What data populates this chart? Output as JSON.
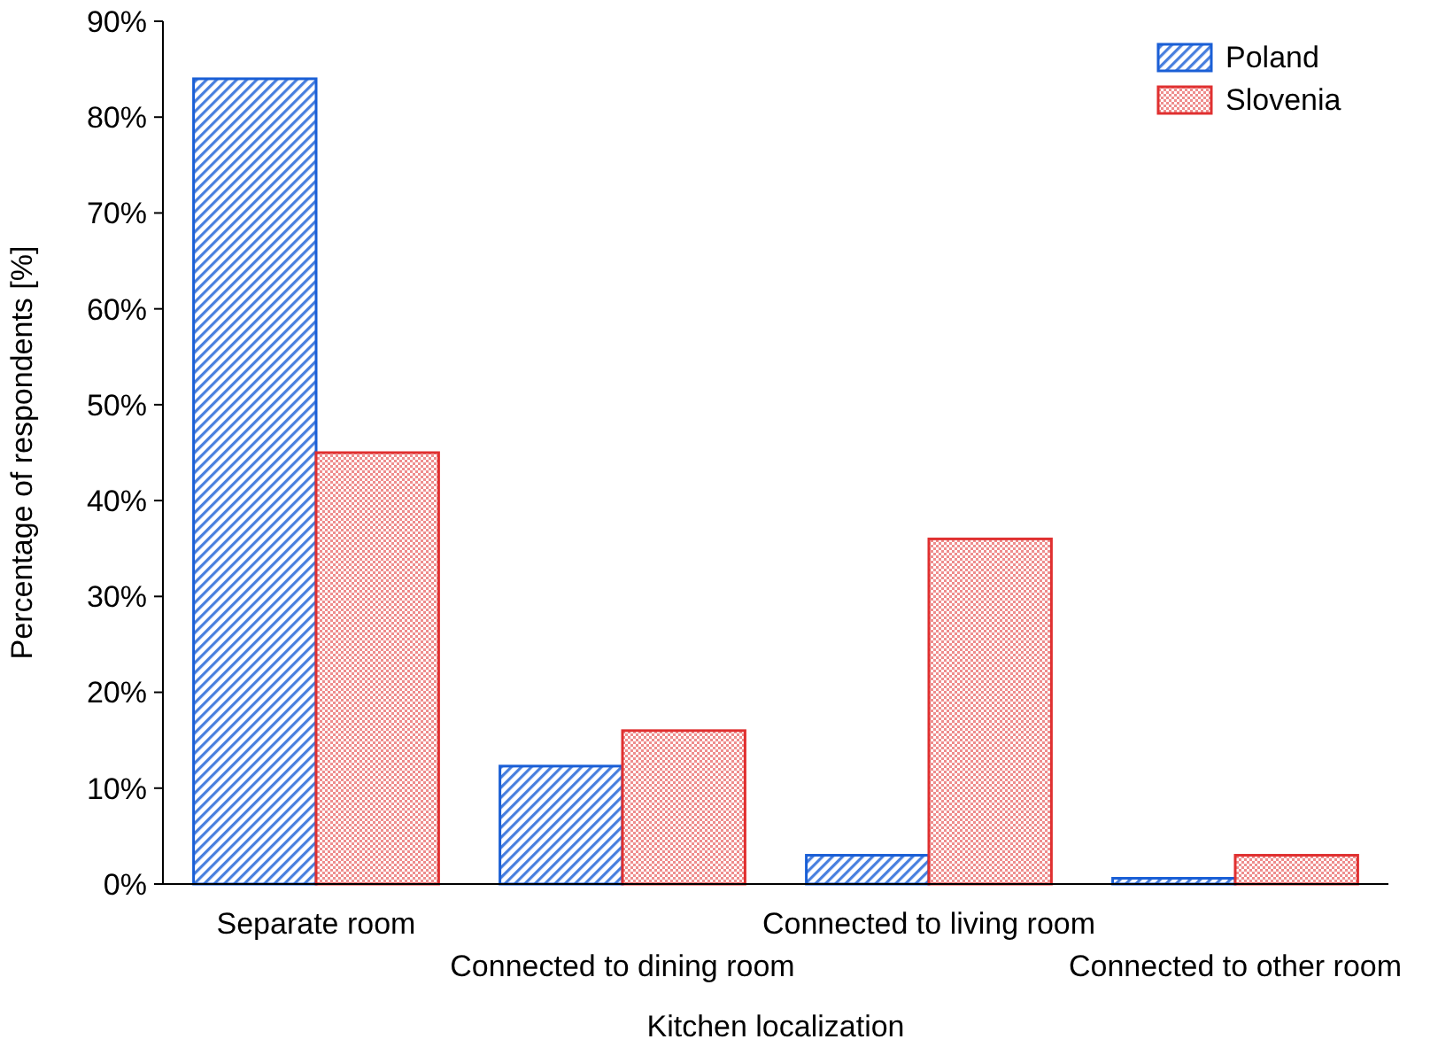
{
  "chart_data": {
    "type": "bar",
    "xlabel": "Kitchen localization",
    "ylabel": "Percentage of respondents [%]",
    "categories": [
      "Separate room",
      "Connected to dining room",
      "Connected to living room",
      "Connected to other room"
    ],
    "series": [
      {
        "name": "Poland",
        "color": "#1a5fd6",
        "values": [
          84,
          12.3,
          3,
          0.6
        ]
      },
      {
        "name": "Slovenia",
        "color": "#e03030",
        "values": [
          45,
          16,
          36,
          3
        ]
      }
    ],
    "ylim": [
      0,
      90
    ],
    "yticks": [
      {
        "value": 0,
        "label": "0%"
      },
      {
        "value": 10,
        "label": "10%"
      },
      {
        "value": 20,
        "label": "20%"
      },
      {
        "value": 30,
        "label": "30%"
      },
      {
        "value": 40,
        "label": "40%"
      },
      {
        "value": 50,
        "label": "50%"
      },
      {
        "value": 60,
        "label": "60%"
      },
      {
        "value": 70,
        "label": "70%"
      },
      {
        "value": 80,
        "label": "80%"
      },
      {
        "value": 90,
        "label": "90%"
      }
    ],
    "grid": false,
    "legend": "top right"
  }
}
